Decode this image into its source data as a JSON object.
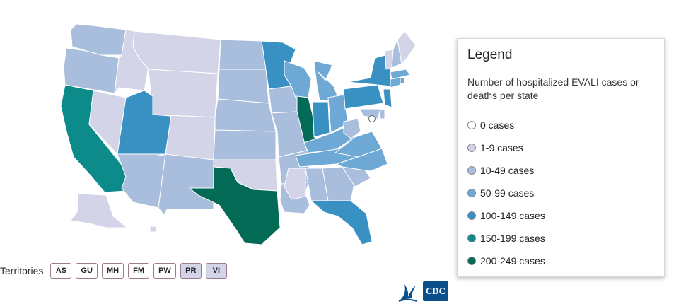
{
  "legend": {
    "title": "Legend",
    "subtitle": "Number of hospitalized EVALI cases or deaths per state",
    "items": [
      {
        "label": "0 cases",
        "color": "#ffffff"
      },
      {
        "label": "1-9 cases",
        "color": "#d4d4e8"
      },
      {
        "label": "10-49 cases",
        "color": "#a9bddc"
      },
      {
        "label": "50-99 cases",
        "color": "#6ea8d4"
      },
      {
        "label": "100-149 cases",
        "color": "#3890c3"
      },
      {
        "label": "150-199 cases",
        "color": "#0d8a8a"
      },
      {
        "label": "200-249 cases",
        "color": "#036b55"
      }
    ]
  },
  "territories": {
    "label": "Territories",
    "items": [
      {
        "code": "AS",
        "color": "#ffffff"
      },
      {
        "code": "GU",
        "color": "#ffffff"
      },
      {
        "code": "MH",
        "color": "#ffffff"
      },
      {
        "code": "FM",
        "color": "#ffffff"
      },
      {
        "code": "PW",
        "color": "#ffffff"
      },
      {
        "code": "PR",
        "color": "#d4d4e8"
      },
      {
        "code": "VI",
        "color": "#d4d4e8"
      }
    ]
  },
  "logos": {
    "hhs": "hhs-eagle-icon",
    "cdc": "CDC"
  },
  "states": [
    {
      "id": "WA",
      "category": 2
    },
    {
      "id": "OR",
      "category": 2
    },
    {
      "id": "CA",
      "category": 5
    },
    {
      "id": "NV",
      "category": 1
    },
    {
      "id": "ID",
      "category": 1
    },
    {
      "id": "MT",
      "category": 1
    },
    {
      "id": "WY",
      "category": 1
    },
    {
      "id": "UT",
      "category": 4
    },
    {
      "id": "AZ",
      "category": 2
    },
    {
      "id": "CO",
      "category": 1
    },
    {
      "id": "NM",
      "category": 2
    },
    {
      "id": "ND",
      "category": 2
    },
    {
      "id": "SD",
      "category": 2
    },
    {
      "id": "NE",
      "category": 2
    },
    {
      "id": "KS",
      "category": 2
    },
    {
      "id": "OK",
      "category": 1
    },
    {
      "id": "TX",
      "category": 6
    },
    {
      "id": "MN",
      "category": 4
    },
    {
      "id": "IA",
      "category": 2
    },
    {
      "id": "MO",
      "category": 2
    },
    {
      "id": "AR",
      "category": 2
    },
    {
      "id": "LA",
      "category": 2
    },
    {
      "id": "WI",
      "category": 3
    },
    {
      "id": "IL",
      "category": 6
    },
    {
      "id": "MI",
      "category": 3
    },
    {
      "id": "IN",
      "category": 4
    },
    {
      "id": "OH",
      "category": 3
    },
    {
      "id": "KY",
      "category": 3
    },
    {
      "id": "TN",
      "category": 3
    },
    {
      "id": "MS",
      "category": 1
    },
    {
      "id": "AL",
      "category": 2
    },
    {
      "id": "GA",
      "category": 2
    },
    {
      "id": "FL",
      "category": 4
    },
    {
      "id": "SC",
      "category": 2
    },
    {
      "id": "NC",
      "category": 3
    },
    {
      "id": "VA",
      "category": 3
    },
    {
      "id": "WV",
      "category": 2
    },
    {
      "id": "PA",
      "category": 4
    },
    {
      "id": "NY",
      "category": 4
    },
    {
      "id": "VT",
      "category": 1
    },
    {
      "id": "NH",
      "category": 2
    },
    {
      "id": "ME",
      "category": 1
    },
    {
      "id": "MA",
      "category": 3
    },
    {
      "id": "CT",
      "category": 3
    },
    {
      "id": "RI",
      "category": 3
    },
    {
      "id": "NJ",
      "category": 4
    },
    {
      "id": "DE",
      "category": 2
    },
    {
      "id": "MD",
      "category": 2
    },
    {
      "id": "DC",
      "category": 0
    },
    {
      "id": "AK",
      "category": 1
    },
    {
      "id": "HI",
      "category": 1
    }
  ]
}
